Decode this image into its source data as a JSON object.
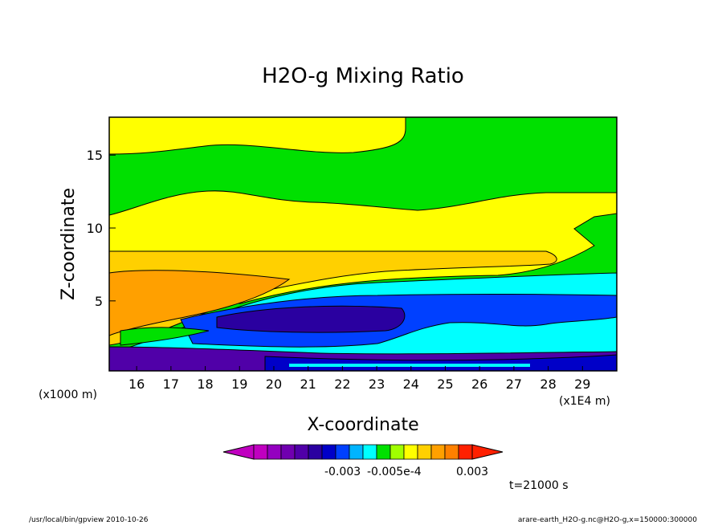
{
  "chart_data": {
    "type": "heatmap",
    "title": "H2O-g Mixing Ratio",
    "xlabel": "X-coordinate",
    "ylabel": "Z-coordinate",
    "x_units_left": "(x1000 m)",
    "x_units_right": "(x1E4 m)",
    "xlim": [
      15.2,
      30.0
    ],
    "ylim": [
      0.2,
      17.6
    ],
    "x_ticks": [
      16,
      17,
      18,
      19,
      20,
      21,
      22,
      23,
      24,
      25,
      26,
      27,
      28,
      29
    ],
    "y_ticks": [
      5,
      10,
      15
    ],
    "colorbar": {
      "tick_labels": [
        "-0.003",
        "-0.005e-4",
        "0.003"
      ],
      "colors": [
        "#c000c0",
        "#9400c0",
        "#7000b0",
        "#5000a8",
        "#2a00a0",
        "#0000c8",
        "#0040ff",
        "#00b4ff",
        "#00ffff",
        "#00e000",
        "#a0ff00",
        "#ffff00",
        "#ffd000",
        "#ffa000",
        "#ff8000",
        "#ff2000"
      ]
    },
    "time_label": "t=21000 s",
    "layers": [
      {
        "zone": "top",
        "color": "#00e000"
      },
      {
        "zone": "upper",
        "color": "#ffff00"
      },
      {
        "zone": "middle",
        "color": "#ffd000"
      },
      {
        "zone": "left-core",
        "color": "#ffa000"
      },
      {
        "zone": "mid-low",
        "color": "#00ffff"
      },
      {
        "zone": "low",
        "color": "#0040ff"
      },
      {
        "zone": "near-surface",
        "color": "#5000a8"
      }
    ]
  },
  "footer": {
    "left": "/usr/local/bin/gpview  2010-10-26",
    "right": "arare-earth_H2O-g.nc@H2O-g,x=150000:300000"
  }
}
